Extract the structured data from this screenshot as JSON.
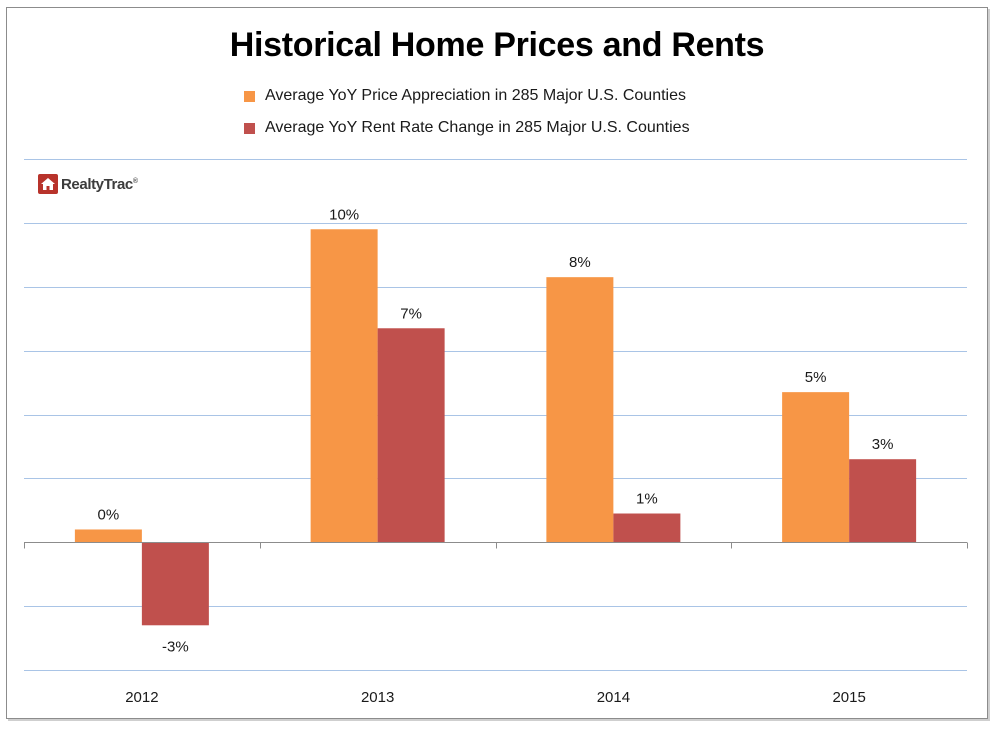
{
  "chart_data": {
    "type": "bar",
    "title": "Historical Home Prices and Rents",
    "categories": [
      "2012",
      "2013",
      "2014",
      "2015"
    ],
    "series": [
      {
        "name": "Average YoY Price Appreciation in 285 Major U.S. Counties",
        "color": "#f79646",
        "values": [
          0.4,
          9.8,
          8.3,
          4.7
        ],
        "labels": [
          "0%",
          "10%",
          "8%",
          "5%"
        ]
      },
      {
        "name": "Average YoY Rent Rate Change in 285 Major U.S. Counties",
        "color": "#c0504d",
        "values": [
          -2.6,
          6.7,
          0.9,
          2.6
        ],
        "labels": [
          "-3%",
          "7%",
          "1%",
          "3%"
        ]
      }
    ],
    "ylim": [
      -4,
      12
    ],
    "grid": true,
    "legend_position": "top"
  },
  "logo": {
    "text": "RealtyTrac",
    "tm": "®"
  }
}
